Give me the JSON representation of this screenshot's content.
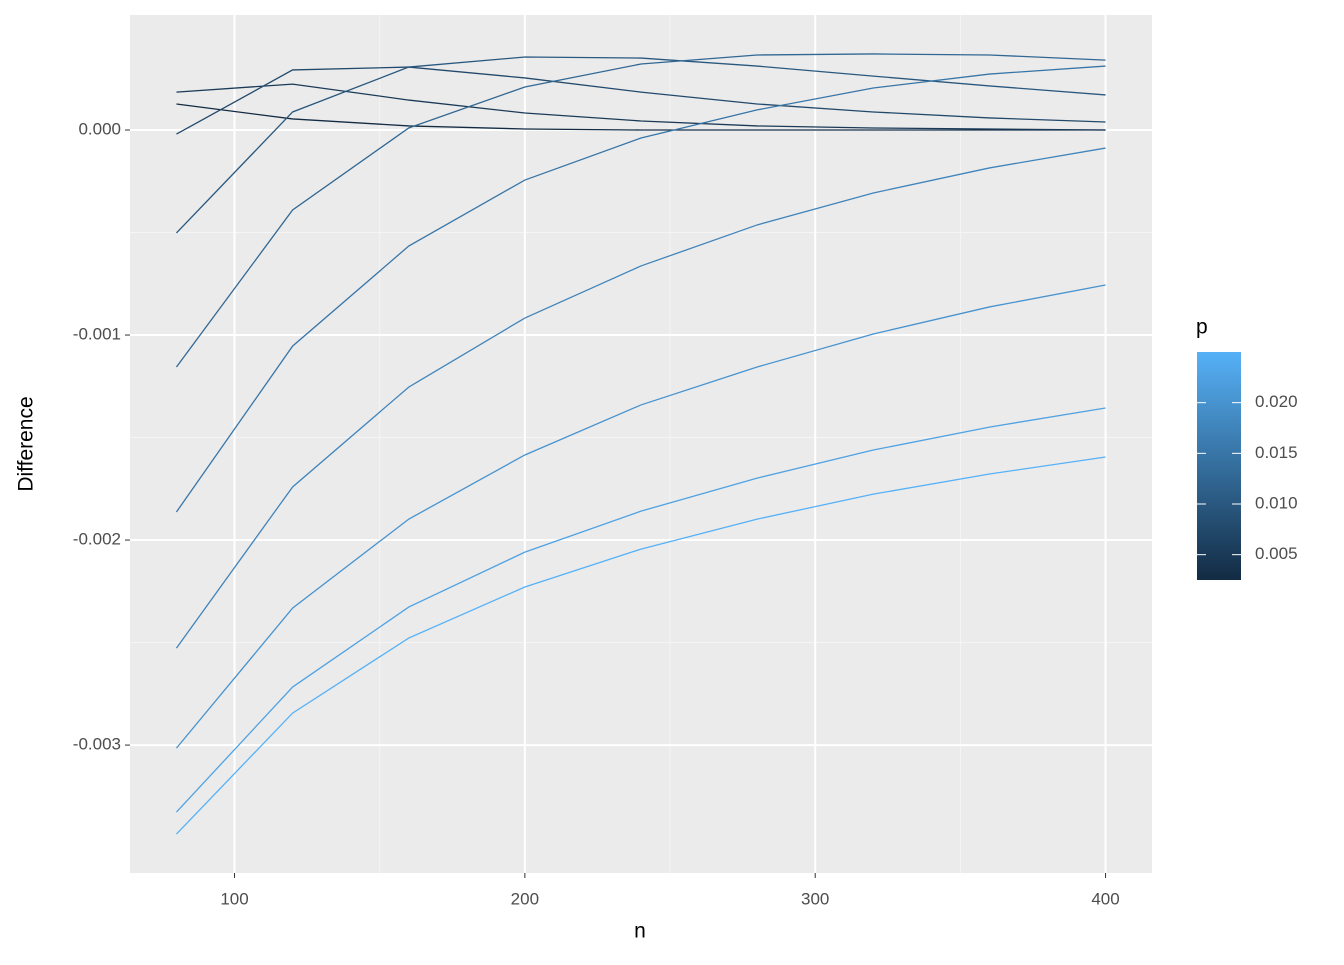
{
  "chart_data": {
    "type": "line",
    "x_label": "n",
    "y_label": "Difference",
    "x": [
      80,
      120,
      160,
      200,
      240,
      280,
      320,
      360,
      400
    ],
    "series": [
      {
        "color": "#132B43",
        "values": [
          0.000127,
          5.4e-05,
          2e-05,
          5e-06,
          0,
          0,
          0,
          0,
          0
        ]
      },
      {
        "color": "#1A3A57",
        "values": [
          0.000185,
          0.000224,
          0.000146,
          8.3e-05,
          4.4e-05,
          2e-05,
          1e-05,
          5e-06,
          0
        ]
      },
      {
        "color": "#22496B",
        "values": [
          -2e-05,
          0.000293,
          0.000307,
          0.000254,
          0.000185,
          0.000127,
          8.8e-05,
          5.9e-05,
          3.9e-05
        ]
      },
      {
        "color": "#29587F",
        "values": [
          -0.000502,
          8.8e-05,
          0.000307,
          0.000356,
          0.000351,
          0.000312,
          0.000263,
          0.000215,
          0.000171
        ]
      },
      {
        "color": "#316793",
        "values": [
          -0.001156,
          -0.00039,
          1e-05,
          0.00021,
          0.000322,
          0.000366,
          0.000371,
          0.000366,
          0.000341
        ]
      },
      {
        "color": "#3875A7",
        "values": [
          -0.001863,
          -0.001054,
          -0.000566,
          -0.000244,
          -3.9e-05,
          9.8e-05,
          0.000205,
          0.000273,
          0.000312
        ]
      },
      {
        "color": "#4084BB",
        "values": [
          -0.002527,
          -0.001741,
          -0.001254,
          -0.000917,
          -0.000663,
          -0.000463,
          -0.000307,
          -0.000185,
          -8.8e-05
        ]
      },
      {
        "color": "#4793CF",
        "values": [
          -0.003015,
          -0.002332,
          -0.001898,
          -0.001585,
          -0.001341,
          -0.001156,
          -0.000995,
          -0.000863,
          -0.000756
        ]
      },
      {
        "color": "#4FA2E3",
        "values": [
          -0.003327,
          -0.002717,
          -0.002327,
          -0.002059,
          -0.001859,
          -0.001698,
          -0.001561,
          -0.001449,
          -0.001356
        ]
      },
      {
        "color": "#56B1F7",
        "values": [
          -0.003434,
          -0.002844,
          -0.002478,
          -0.002229,
          -0.002044,
          -0.001898,
          -0.001776,
          -0.001678,
          -0.001595
        ]
      }
    ],
    "xlim": [
      64,
      416
    ],
    "ylim": [
      -0.003624,
      0.000561
    ],
    "xticks": [
      100,
      200,
      300,
      400
    ],
    "yticks": [
      -0.003,
      -0.002,
      -0.001,
      {
        "value": 0,
        "label": "0.000"
      }
    ],
    "grid": true,
    "minor_grid": true,
    "legend": {
      "title": "p",
      "lim": [
        0.0025,
        0.025
      ],
      "low": "#132B43",
      "high": "#56B1F7",
      "ticks": [
        0.005,
        {
          "value": 0.01,
          "label": "0.010"
        },
        0.015,
        {
          "value": 0.02,
          "label": "0.020"
        }
      ]
    }
  }
}
